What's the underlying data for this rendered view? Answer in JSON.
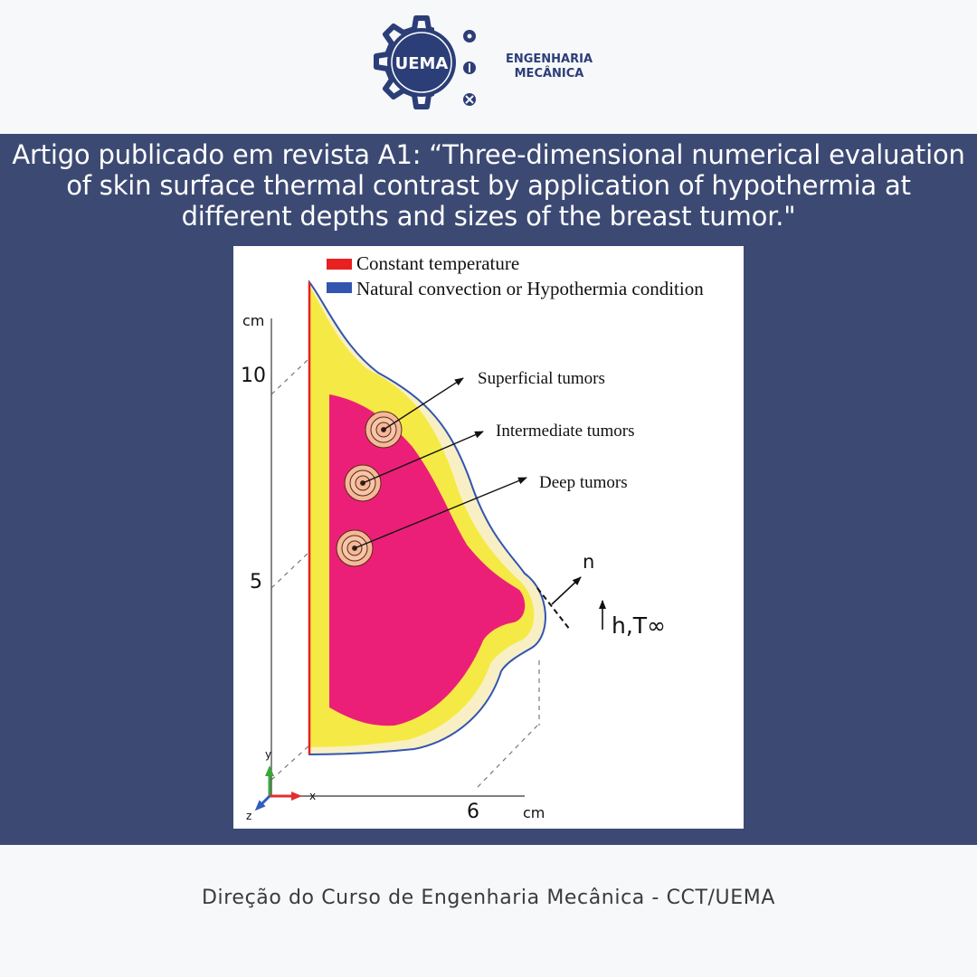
{
  "logo": {
    "badge_text": "UEMA",
    "title_line1": "ENGENHARIA",
    "title_line2": "MECÂNICA"
  },
  "headline": "Artigo publicado em revista A1: “Three-dimensional numerical evaluation of skin surface thermal contrast by application of hypothermia at different depths and sizes of the breast tumor.\"",
  "figure": {
    "legend": [
      {
        "label": "Constant temperature",
        "color": "#e82020"
      },
      {
        "label": "Natural convection or Hypothermia condition",
        "color": "#3355b0"
      }
    ],
    "annotations": {
      "superficial": "Superficial tumors",
      "intermediate": "Intermediate tumors",
      "deep": "Deep tumors"
    },
    "normal_label": "n",
    "bc_label": "h,T∞",
    "axis": {
      "y_unit": "cm",
      "y_ticks": [
        "10",
        "5"
      ],
      "x_tick": "6",
      "x_unit": "cm",
      "triad": {
        "y": "y",
        "x": "x",
        "z": "z"
      }
    }
  },
  "footer": "Direção do Curso de Engenharia Mecânica - CCT/UEMA"
}
